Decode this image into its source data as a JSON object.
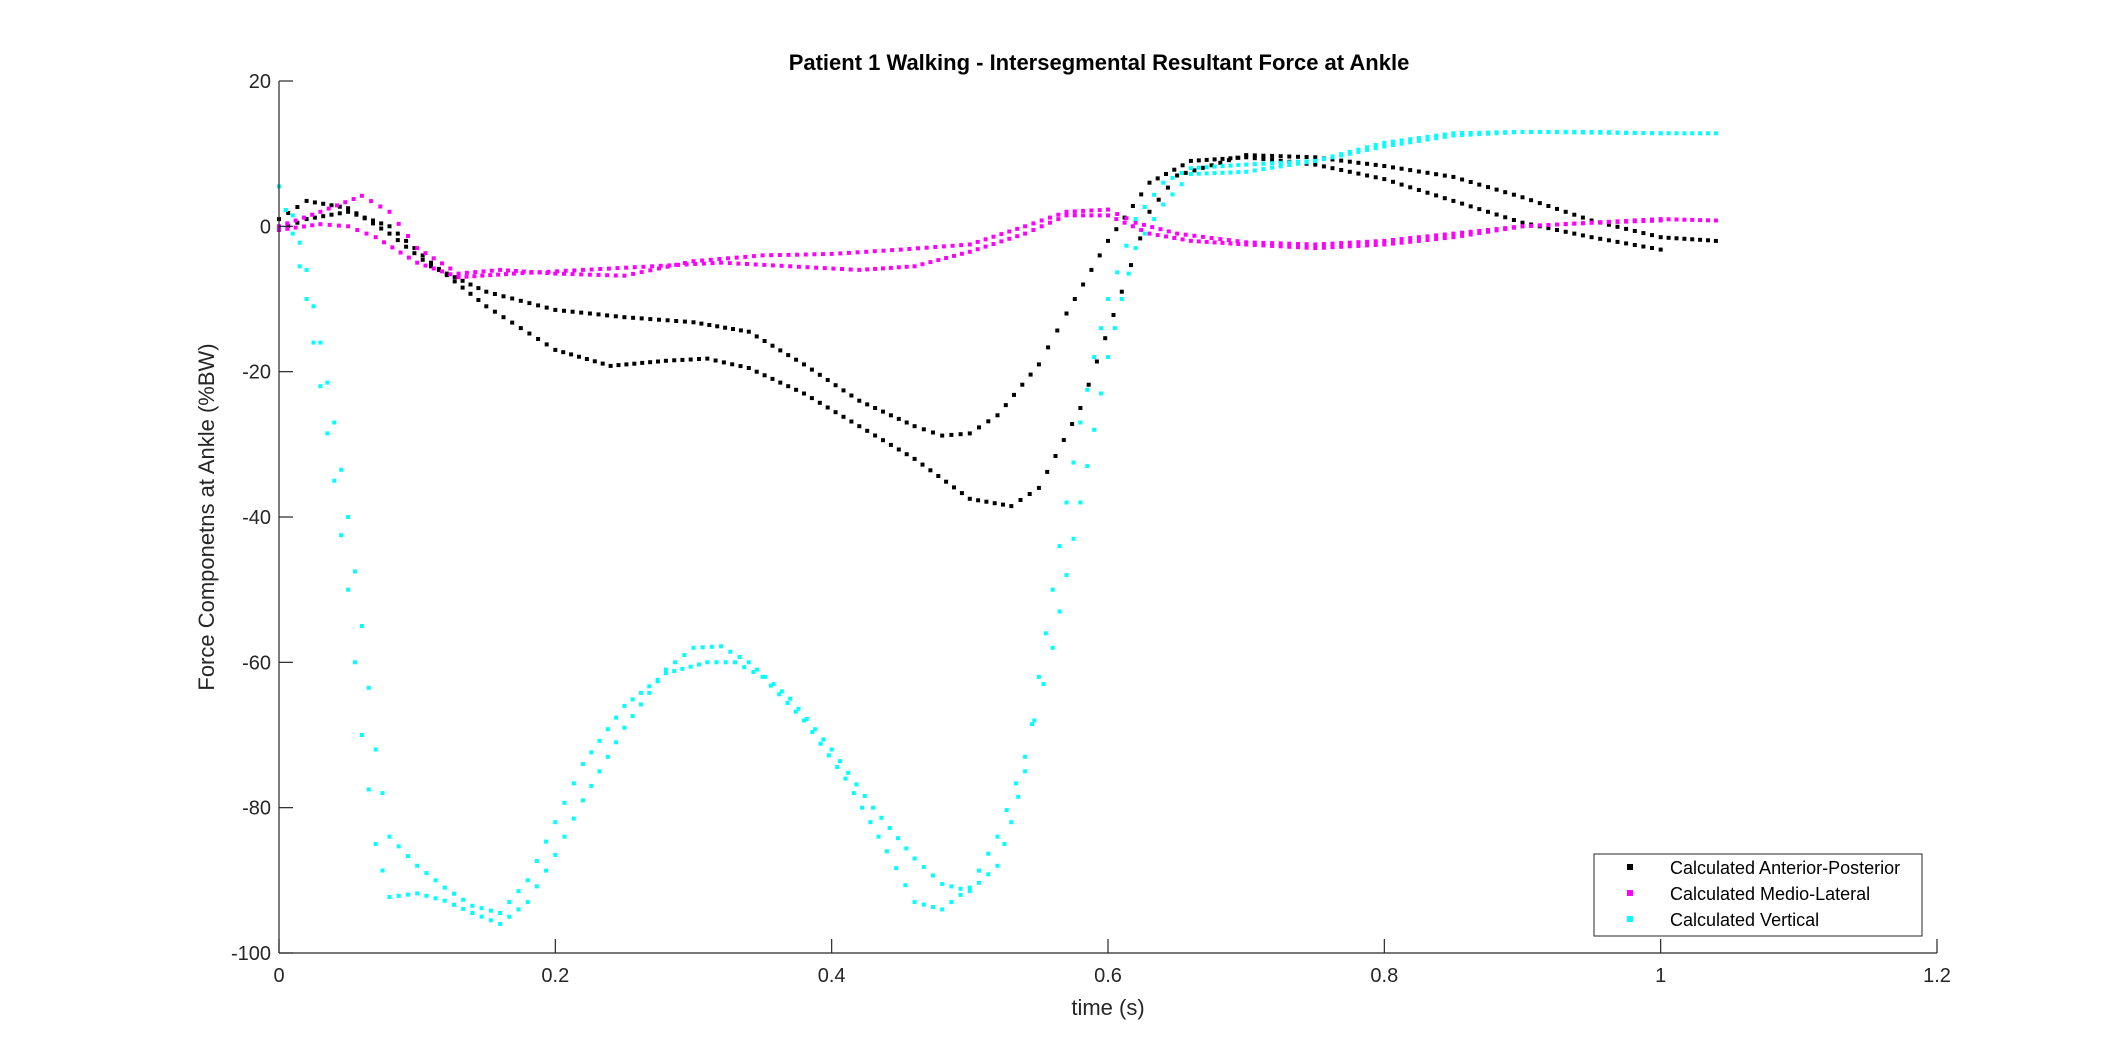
{
  "chart_data": {
    "type": "scatter",
    "title": "Patient 1 Walking - Intersegmental Resultant Force at Ankle",
    "xlabel": "time (s)",
    "ylabel": "Force Componetns at Ankle (%BW)",
    "xlim": [
      0,
      1.2
    ],
    "ylim": [
      -100,
      20
    ],
    "xticks": [
      0,
      0.2,
      0.4,
      0.6,
      0.8,
      1,
      1.2
    ],
    "xtick_labels": [
      "0",
      "0.2",
      "0.4",
      "0.6",
      "0.8",
      "1",
      "1.2"
    ],
    "yticks": [
      -100,
      -80,
      -60,
      -40,
      -20,
      0,
      20
    ],
    "ytick_labels": [
      "-100",
      "-80",
      "-60",
      "-40",
      "-20",
      "0",
      "20"
    ],
    "grid": false,
    "legend_position": "bottom-right",
    "series": [
      {
        "name": "Calculated Anterior-Posterior",
        "color": "#000000",
        "traces": [
          [
            [
              0,
              1
            ],
            [
              0.02,
              3.5
            ],
            [
              0.05,
              2.5
            ],
            [
              0.08,
              -1
            ],
            [
              0.11,
              -5.5
            ],
            [
              0.15,
              -9
            ],
            [
              0.2,
              -11.5
            ],
            [
              0.25,
              -12.5
            ],
            [
              0.3,
              -13.2
            ],
            [
              0.34,
              -14.5
            ],
            [
              0.38,
              -19
            ],
            [
              0.42,
              -24
            ],
            [
              0.46,
              -27.5
            ],
            [
              0.48,
              -28.8
            ],
            [
              0.5,
              -28.5
            ],
            [
              0.52,
              -26
            ],
            [
              0.55,
              -19
            ],
            [
              0.57,
              -12
            ],
            [
              0.6,
              -2
            ],
            [
              0.63,
              6
            ],
            [
              0.66,
              9
            ],
            [
              0.7,
              9.5
            ],
            [
              0.75,
              8.5
            ],
            [
              0.8,
              6.5
            ],
            [
              0.85,
              3.5
            ],
            [
              0.9,
              0.5
            ],
            [
              0.95,
              -1.5
            ],
            [
              1,
              -3.2
            ]
          ],
          [
            [
              0,
              -0.5
            ],
            [
              0.02,
              1
            ],
            [
              0.05,
              2
            ],
            [
              0.08,
              0
            ],
            [
              0.11,
              -5
            ],
            [
              0.15,
              -11
            ],
            [
              0.2,
              -17
            ],
            [
              0.24,
              -19.2
            ],
            [
              0.28,
              -18.5
            ],
            [
              0.31,
              -18.2
            ],
            [
              0.34,
              -19.5
            ],
            [
              0.38,
              -23
            ],
            [
              0.42,
              -27.5
            ],
            [
              0.46,
              -32
            ],
            [
              0.5,
              -37.5
            ],
            [
              0.53,
              -38.5
            ],
            [
              0.55,
              -36
            ],
            [
              0.58,
              -25
            ],
            [
              0.61,
              -9
            ],
            [
              0.63,
              2
            ],
            [
              0.65,
              7
            ],
            [
              0.7,
              9.8
            ],
            [
              0.75,
              9.5
            ],
            [
              0.8,
              8.3
            ],
            [
              0.85,
              6.8
            ],
            [
              0.9,
              4
            ],
            [
              0.95,
              0.8
            ],
            [
              1,
              -1.5
            ],
            [
              1.04,
              -2
            ]
          ]
        ]
      },
      {
        "name": "Calculated Medio-Lateral",
        "color": "#ff00ff",
        "traces": [
          [
            [
              0,
              -0.5
            ],
            [
              0.03,
              0.3
            ],
            [
              0.05,
              0
            ],
            [
              0.07,
              -1.5
            ],
            [
              0.1,
              -5
            ],
            [
              0.13,
              -7
            ],
            [
              0.17,
              -6.5
            ],
            [
              0.22,
              -6
            ],
            [
              0.27,
              -5.5
            ],
            [
              0.32,
              -5
            ],
            [
              0.37,
              -5.5
            ],
            [
              0.42,
              -6
            ],
            [
              0.46,
              -5.5
            ],
            [
              0.5,
              -3.5
            ],
            [
              0.54,
              -1
            ],
            [
              0.57,
              1.5
            ],
            [
              0.6,
              1.5
            ],
            [
              0.63,
              -1
            ],
            [
              0.66,
              -2
            ],
            [
              0.7,
              -2.5
            ],
            [
              0.75,
              -3
            ],
            [
              0.8,
              -2.5
            ],
            [
              0.85,
              -1.5
            ],
            [
              0.9,
              0
            ],
            [
              0.95,
              0.5
            ],
            [
              1,
              1
            ],
            [
              1.04,
              0.8
            ]
          ],
          [
            [
              0,
              0
            ],
            [
              0.03,
              2
            ],
            [
              0.06,
              4.2
            ],
            [
              0.08,
              2
            ],
            [
              0.1,
              -3
            ],
            [
              0.13,
              -6.5
            ],
            [
              0.16,
              -6
            ],
            [
              0.2,
              -6.5
            ],
            [
              0.25,
              -6.8
            ],
            [
              0.3,
              -4.8
            ],
            [
              0.35,
              -4
            ],
            [
              0.4,
              -3.8
            ],
            [
              0.45,
              -3.2
            ],
            [
              0.5,
              -2.5
            ],
            [
              0.54,
              0
            ],
            [
              0.57,
              2
            ],
            [
              0.6,
              2.3
            ],
            [
              0.62,
              0.5
            ],
            [
              0.65,
              -1
            ],
            [
              0.7,
              -2.2
            ],
            [
              0.75,
              -2.5
            ],
            [
              0.8,
              -2
            ],
            [
              0.85,
              -1
            ],
            [
              0.9,
              0
            ],
            [
              0.95,
              0.5
            ],
            [
              1,
              0.8
            ]
          ]
        ]
      },
      {
        "name": "Calculated Vertical",
        "color": "#00ffff",
        "traces": [
          [
            [
              0,
              5.5
            ],
            [
              0.01,
              -1
            ],
            [
              0.02,
              -10
            ],
            [
              0.03,
              -22
            ],
            [
              0.04,
              -35
            ],
            [
              0.05,
              -50
            ],
            [
              0.06,
              -70
            ],
            [
              0.07,
              -85
            ],
            [
              0.08,
              -92.3
            ],
            [
              0.1,
              -91.8
            ],
            [
              0.12,
              -92.8
            ],
            [
              0.14,
              -94.5
            ],
            [
              0.16,
              -96
            ],
            [
              0.18,
              -93
            ],
            [
              0.2,
              -86.5
            ],
            [
              0.22,
              -79
            ],
            [
              0.25,
              -69
            ],
            [
              0.28,
              -61
            ],
            [
              0.3,
              -58
            ],
            [
              0.32,
              -57.8
            ],
            [
              0.34,
              -60
            ],
            [
              0.37,
              -65
            ],
            [
              0.4,
              -72
            ],
            [
              0.43,
              -80
            ],
            [
              0.46,
              -87
            ],
            [
              0.48,
              -90.5
            ],
            [
              0.5,
              -91.5
            ],
            [
              0.52,
              -88
            ],
            [
              0.53,
              -82
            ],
            [
              0.54,
              -75
            ],
            [
              0.55,
              -62
            ],
            [
              0.56,
              -50
            ],
            [
              0.57,
              -38
            ],
            [
              0.58,
              -27
            ],
            [
              0.59,
              -18
            ],
            [
              0.6,
              -10
            ],
            [
              0.62,
              1
            ],
            [
              0.64,
              6
            ],
            [
              0.66,
              8
            ],
            [
              0.7,
              8.5
            ],
            [
              0.75,
              9
            ],
            [
              0.8,
              11
            ],
            [
              0.85,
              12.5
            ],
            [
              0.9,
              13
            ],
            [
              0.95,
              13
            ],
            [
              1,
              12.8
            ],
            [
              1.04,
              12.8
            ]
          ],
          [
            [
              0.01,
              1.5
            ],
            [
              0.02,
              -6
            ],
            [
              0.03,
              -16
            ],
            [
              0.04,
              -27
            ],
            [
              0.05,
              -40
            ],
            [
              0.06,
              -55
            ],
            [
              0.07,
              -72
            ],
            [
              0.08,
              -84
            ],
            [
              0.1,
              -88
            ],
            [
              0.12,
              -91
            ],
            [
              0.14,
              -93.5
            ],
            [
              0.16,
              -94.5
            ],
            [
              0.18,
              -90
            ],
            [
              0.2,
              -82
            ],
            [
              0.22,
              -74
            ],
            [
              0.25,
              -66
            ],
            [
              0.28,
              -61.5
            ],
            [
              0.31,
              -60
            ],
            [
              0.33,
              -60
            ],
            [
              0.35,
              -62
            ],
            [
              0.38,
              -68
            ],
            [
              0.41,
              -76
            ],
            [
              0.44,
              -86
            ],
            [
              0.46,
              -93
            ],
            [
              0.48,
              -94
            ],
            [
              0.5,
              -91
            ],
            [
              0.52,
              -84
            ],
            [
              0.54,
              -73
            ],
            [
              0.56,
              -58
            ],
            [
              0.57,
              -48
            ],
            [
              0.58,
              -38
            ],
            [
              0.59,
              -28
            ],
            [
              0.6,
              -18
            ],
            [
              0.61,
              -10
            ],
            [
              0.62,
              -3
            ],
            [
              0.64,
              3
            ],
            [
              0.66,
              7.2
            ],
            [
              0.7,
              7.5
            ],
            [
              0.75,
              9
            ],
            [
              0.8,
              11.5
            ],
            [
              0.85,
              12.8
            ],
            [
              0.9,
              13
            ],
            [
              0.95,
              12.9
            ],
            [
              1,
              12.8
            ]
          ]
        ]
      }
    ]
  }
}
